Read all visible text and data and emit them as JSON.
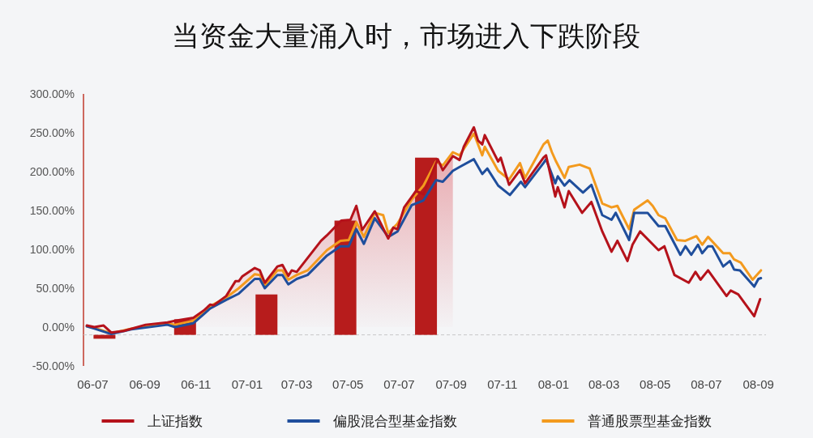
{
  "chart_data": {
    "type": "line",
    "title": "当资金大量涌入时，市场进入下跌阶段",
    "xlim": [
      "2006-06-20",
      "2008-09-10"
    ],
    "ylim": [
      -50,
      300
    ],
    "xticks": [
      {
        "value": "2006-07",
        "label": "06-07"
      },
      {
        "value": "2006-09",
        "label": "06-09"
      },
      {
        "value": "2006-11",
        "label": "06-11"
      },
      {
        "value": "2007-01",
        "label": "07-01"
      },
      {
        "value": "2007-03",
        "label": "07-03"
      },
      {
        "value": "2007-05",
        "label": "07-05"
      },
      {
        "value": "2007-07",
        "label": "07-07"
      },
      {
        "value": "2007-09",
        "label": "07-09"
      },
      {
        "value": "2007-11",
        "label": "07-11"
      },
      {
        "value": "2008-01",
        "label": "08-01"
      },
      {
        "value": "2008-03",
        "label": "08-03"
      },
      {
        "value": "2008-05",
        "label": "08-05"
      },
      {
        "value": "2008-07",
        "label": "08-07"
      },
      {
        "value": "2008-09",
        "label": "08-09"
      }
    ],
    "yticks": [
      {
        "value": -50,
        "label": "-50.00%"
      },
      {
        "value": 0,
        "label": "0.00%"
      },
      {
        "value": 50,
        "label": "50.00%"
      },
      {
        "value": 100,
        "label": "100.00%"
      },
      {
        "value": 150,
        "label": "150.00%"
      },
      {
        "value": 200,
        "label": "200.00%"
      },
      {
        "value": 250,
        "label": "250.00%"
      },
      {
        "value": 300,
        "label": "300.00%"
      }
    ],
    "legend": "bottom",
    "line_style": "solid",
    "ref_lines": [
      {
        "axis": "y",
        "value": -10,
        "color": "#c8c8c8",
        "line_style": "dashed"
      }
    ],
    "series": [
      {
        "name": "上证指数",
        "color": "#b5121b",
        "x": [
          "2006-06-24",
          "2006-07-03",
          "2006-07-14",
          "2006-07-23",
          "2006-08-07",
          "2006-09-02",
          "2006-09-28",
          "2006-10-07",
          "2006-10-29",
          "2006-11-11",
          "2006-11-18",
          "2006-11-22",
          "2006-12-07",
          "2006-12-18",
          "2006-12-22",
          "2006-12-26",
          "2007-01-10",
          "2007-01-16",
          "2007-01-22",
          "2007-02-06",
          "2007-02-12",
          "2007-02-19",
          "2007-02-23",
          "2007-03-01",
          "2007-03-30",
          "2007-04-06",
          "2007-04-23",
          "2007-05-04",
          "2007-05-11",
          "2007-05-18",
          "2007-06-02",
          "2007-06-18",
          "2007-06-24",
          "2007-06-29",
          "2007-07-07",
          "2007-07-21",
          "2007-07-30",
          "2007-08-16",
          "2007-08-22",
          "2007-09-03",
          "2007-09-11",
          "2007-09-16",
          "2007-09-28",
          "2007-10-03",
          "2007-10-08",
          "2007-10-11",
          "2007-10-27",
          "2007-10-30",
          "2007-11-09",
          "2007-11-22",
          "2007-11-28",
          "2007-12-20",
          "2007-12-23",
          "2008-01-03",
          "2008-01-06",
          "2008-01-14",
          "2008-01-19",
          "2008-02-04",
          "2008-02-15",
          "2008-02-28",
          "2008-03-10",
          "2008-03-17",
          "2008-03-29",
          "2008-04-04",
          "2008-04-13",
          "2008-05-05",
          "2008-05-12",
          "2008-05-24",
          "2008-06-10",
          "2008-06-18",
          "2008-06-24",
          "2008-07-03",
          "2008-07-25",
          "2008-07-30",
          "2008-08-08",
          "2008-08-27",
          "2008-09-03"
        ],
        "values": [
          2,
          0,
          2,
          -7,
          -5,
          3,
          6,
          8,
          12,
          22,
          29,
          28,
          40,
          59,
          59,
          65,
          76,
          73,
          57,
          78,
          80,
          66,
          73,
          71,
          111,
          118,
          137,
          138,
          156,
          125,
          149,
          114,
          128,
          126,
          154,
          175,
          171,
          216,
          202,
          220,
          215,
          232,
          257,
          240,
          235,
          247,
          213,
          218,
          183,
          202,
          185,
          218,
          221,
          168,
          180,
          154,
          175,
          147,
          161,
          123,
          97,
          111,
          85,
          106,
          123,
          99,
          104,
          67,
          57,
          71,
          61,
          73,
          40,
          47,
          42,
          14,
          36
        ]
      },
      {
        "name": "偏股混合型基金指数",
        "color": "#1f4e9c",
        "x": [
          "2006-06-24",
          "2006-07-03",
          "2006-07-23",
          "2006-08-16",
          "2006-09-28",
          "2006-10-07",
          "2006-10-29",
          "2006-11-18",
          "2006-12-07",
          "2006-12-22",
          "2007-01-10",
          "2007-01-16",
          "2007-01-22",
          "2007-02-06",
          "2007-02-12",
          "2007-02-19",
          "2007-03-01",
          "2007-03-14",
          "2007-04-06",
          "2007-04-22",
          "2007-05-02",
          "2007-05-11",
          "2007-05-20",
          "2007-06-02",
          "2007-06-18",
          "2007-06-29",
          "2007-07-16",
          "2007-07-30",
          "2007-08-14",
          "2007-08-22",
          "2007-09-03",
          "2007-09-11",
          "2007-09-28",
          "2007-10-08",
          "2007-10-14",
          "2007-10-27",
          "2007-11-10",
          "2007-11-23",
          "2007-11-28",
          "2007-12-20",
          "2007-12-23",
          "2008-01-03",
          "2008-01-06",
          "2008-01-14",
          "2008-01-20",
          "2008-02-05",
          "2008-02-15",
          "2008-02-28",
          "2008-03-10",
          "2008-03-15",
          "2008-03-31",
          "2008-04-06",
          "2008-04-22",
          "2008-05-05",
          "2008-05-13",
          "2008-05-31",
          "2008-06-06",
          "2008-06-13",
          "2008-06-21",
          "2008-06-26",
          "2008-07-03",
          "2008-07-08",
          "2008-07-21",
          "2008-07-29",
          "2008-08-03",
          "2008-08-10",
          "2008-08-27",
          "2008-09-01",
          "2008-09-04"
        ],
        "values": [
          1,
          -2,
          -9,
          -3,
          3,
          0,
          5,
          24,
          35,
          43,
          62,
          62,
          50,
          67,
          67,
          55,
          62,
          67,
          92,
          104,
          104,
          126,
          107,
          140,
          116,
          123,
          157,
          163,
          189,
          187,
          201,
          206,
          216,
          197,
          204,
          182,
          170,
          187,
          180,
          211,
          216,
          185,
          194,
          182,
          189,
          173,
          183,
          144,
          138,
          147,
          112,
          147,
          147,
          130,
          130,
          93,
          104,
          93,
          106,
          95,
          104,
          104,
          78,
          85,
          74,
          73,
          52,
          62,
          63
        ]
      },
      {
        "name": "普通股票型基金指数",
        "color": "#f39a1e",
        "x": [
          "2006-06-24",
          "2006-07-03",
          "2006-07-23",
          "2006-08-16",
          "2006-09-28",
          "2006-10-07",
          "2006-10-29",
          "2006-11-18",
          "2006-12-07",
          "2006-12-22",
          "2007-01-10",
          "2007-01-16",
          "2007-01-22",
          "2007-02-06",
          "2007-02-12",
          "2007-02-19",
          "2007-03-01",
          "2007-03-14",
          "2007-04-06",
          "2007-04-22",
          "2007-05-02",
          "2007-05-11",
          "2007-05-20",
          "2007-06-02",
          "2007-06-12",
          "2007-06-18",
          "2007-06-29",
          "2007-07-16",
          "2007-07-30",
          "2007-08-14",
          "2007-08-22",
          "2007-09-03",
          "2007-09-11",
          "2007-09-28",
          "2007-10-08",
          "2007-10-11",
          "2007-10-27",
          "2007-11-09",
          "2007-11-22",
          "2007-11-28",
          "2007-12-20",
          "2007-12-25",
          "2007-12-30",
          "2008-01-04",
          "2008-01-14",
          "2008-01-19",
          "2008-02-01",
          "2008-02-13",
          "2008-02-28",
          "2008-03-10",
          "2008-03-17",
          "2008-03-31",
          "2008-04-06",
          "2008-04-22",
          "2008-04-28",
          "2008-05-05",
          "2008-05-13",
          "2008-05-27",
          "2008-06-06",
          "2008-06-19",
          "2008-06-26",
          "2008-07-03",
          "2008-07-21",
          "2008-07-29",
          "2008-08-03",
          "2008-08-11",
          "2008-08-25",
          "2008-09-04"
        ],
        "values": [
          1,
          -1,
          -8,
          -2,
          5,
          3,
          8,
          27,
          38,
          50,
          68,
          67,
          54,
          73,
          73,
          61,
          67,
          73,
          99,
          111,
          112,
          135,
          116,
          147,
          144,
          121,
          133,
          164,
          182,
          213,
          208,
          225,
          221,
          249,
          221,
          232,
          201,
          190,
          211,
          192,
          235,
          240,
          225,
          213,
          192,
          206,
          209,
          204,
          159,
          154,
          156,
          126,
          151,
          163,
          156,
          144,
          140,
          112,
          111,
          117,
          106,
          116,
          95,
          95,
          87,
          83,
          61,
          73
        ]
      },
      {
        "type": "bar",
        "color": "#b71c1c",
        "x": [
          "2006-07-15",
          "2006-10-19",
          "2007-01-24",
          "2007-04-28",
          "2007-08-02"
        ],
        "base": [
          -10,
          -10,
          -10,
          -10,
          -10
        ],
        "values": [
          -5,
          20,
          52,
          147,
          228
        ]
      },
      {
        "type": "area",
        "color": "#e07078",
        "x": [
          "2006-10-29",
          "2006-11-11",
          "2006-11-18",
          "2006-11-22",
          "2006-12-07",
          "2006-12-18",
          "2006-12-22",
          "2006-12-26",
          "2007-01-10",
          "2007-01-16",
          "2007-01-22",
          "2007-02-06",
          "2007-02-12",
          "2007-02-19",
          "2007-02-23",
          "2007-03-01",
          "2007-03-30",
          "2007-04-06",
          "2007-04-23",
          "2007-05-04",
          "2007-05-11",
          "2007-05-18",
          "2007-06-02",
          "2007-06-18",
          "2007-06-24",
          "2007-06-29",
          "2007-07-07",
          "2007-07-21",
          "2007-08-16",
          "2007-08-22",
          "2007-09-03"
        ],
        "values": [
          12,
          22,
          29,
          28,
          40,
          59,
          59,
          65,
          76,
          73,
          57,
          78,
          80,
          66,
          73,
          71,
          111,
          118,
          137,
          138,
          156,
          125,
          149,
          114,
          128,
          126,
          154,
          175,
          216,
          202,
          220
        ]
      }
    ]
  }
}
